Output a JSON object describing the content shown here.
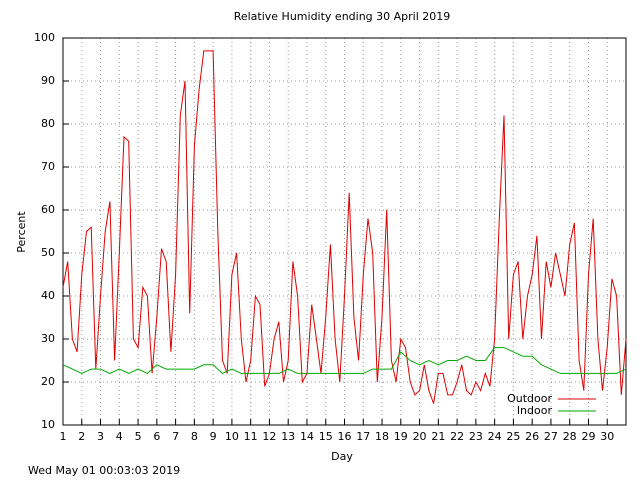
{
  "chart_data": {
    "type": "line",
    "title": "Relative Humidity ending 30 April 2019",
    "xlabel": "Day",
    "ylabel": "Percent",
    "footer": "Wed May 01 00:03:03 2019",
    "xlim": [
      1,
      31
    ],
    "xticks": [
      1,
      2,
      3,
      4,
      5,
      6,
      7,
      8,
      9,
      10,
      11,
      12,
      13,
      14,
      15,
      16,
      17,
      18,
      19,
      20,
      21,
      22,
      23,
      24,
      25,
      26,
      27,
      28,
      29,
      30
    ],
    "ylim": [
      10,
      100
    ],
    "yticks": [
      10,
      20,
      30,
      40,
      50,
      60,
      70,
      80,
      90,
      100
    ],
    "grid": true,
    "legend": "lower right",
    "series": [
      {
        "name": "Outdoor",
        "color": "#dd0000",
        "x": [
          1,
          1.25,
          1.5,
          1.75,
          2,
          2.25,
          2.5,
          2.75,
          3,
          3.25,
          3.5,
          3.75,
          4,
          4.25,
          4.5,
          4.75,
          5,
          5.25,
          5.5,
          5.75,
          6,
          6.25,
          6.5,
          6.75,
          7,
          7.25,
          7.5,
          7.75,
          8,
          8.25,
          8.5,
          8.75,
          9,
          9.25,
          9.5,
          9.75,
          10,
          10.25,
          10.5,
          10.75,
          11,
          11.25,
          11.5,
          11.75,
          12,
          12.25,
          12.5,
          12.75,
          13,
          13.25,
          13.5,
          13.75,
          14,
          14.25,
          14.5,
          14.75,
          15,
          15.25,
          15.5,
          15.75,
          16,
          16.25,
          16.5,
          16.75,
          17,
          17.25,
          17.5,
          17.75,
          18,
          18.25,
          18.5,
          18.75,
          19,
          19.25,
          19.5,
          19.75,
          20,
          20.25,
          20.5,
          20.75,
          21,
          21.25,
          21.5,
          21.75,
          22,
          22.25,
          22.5,
          22.75,
          23,
          23.25,
          23.5,
          23.75,
          24,
          24.25,
          24.5,
          24.75,
          25,
          25.25,
          25.5,
          25.75,
          26,
          26.25,
          26.5,
          26.75,
          27,
          27.25,
          27.5,
          27.75,
          28,
          28.25,
          28.5,
          28.75,
          29,
          29.25,
          29.5,
          29.75,
          30,
          30.25,
          30.5,
          30.75,
          31
        ],
        "values": [
          42,
          48,
          30,
          27,
          45,
          55,
          56,
          23,
          40,
          55,
          62,
          25,
          50,
          77,
          76,
          30,
          28,
          42,
          40,
          22,
          35,
          51,
          48,
          27,
          45,
          82,
          90,
          36,
          75,
          88,
          97,
          97,
          97,
          55,
          25,
          22,
          45,
          50,
          30,
          20,
          25,
          40,
          38,
          19,
          22,
          30,
          34,
          20,
          25,
          48,
          40,
          20,
          22,
          38,
          30,
          22,
          35,
          52,
          30,
          20,
          40,
          64,
          35,
          25,
          45,
          58,
          50,
          20,
          35,
          60,
          25,
          20,
          30,
          28,
          20,
          17,
          18,
          24,
          18,
          15,
          22,
          22,
          17,
          17,
          20,
          24,
          18,
          17,
          20,
          18,
          22,
          19,
          30,
          58,
          82,
          30,
          45,
          48,
          30,
          40,
          45,
          54,
          30,
          48,
          42,
          50,
          45,
          40,
          52,
          57,
          25,
          18,
          45,
          58,
          30,
          18,
          28,
          44,
          40,
          17,
          30
        ]
      },
      {
        "name": "Indoor",
        "color": "#00aa00",
        "x": [
          1,
          1.5,
          2,
          2.5,
          3,
          3.5,
          4,
          4.5,
          5,
          5.5,
          6,
          6.5,
          7,
          7.5,
          8,
          8.5,
          9,
          9.5,
          10,
          10.5,
          11,
          11.5,
          12,
          12.5,
          13,
          13.5,
          14,
          14.5,
          15,
          15.5,
          16,
          16.5,
          17,
          17.5,
          18,
          18.5,
          19,
          19.5,
          20,
          20.5,
          21,
          21.5,
          22,
          22.5,
          23,
          23.5,
          24,
          24.5,
          25,
          25.5,
          26,
          26.5,
          27,
          27.5,
          28,
          28.5,
          29,
          29.5,
          30,
          30.5,
          31
        ],
        "values": [
          24,
          23,
          22,
          23,
          23,
          22,
          23,
          22,
          23,
          22,
          24,
          23,
          23,
          23,
          23,
          24,
          24,
          22,
          23,
          22,
          22,
          22,
          22,
          22,
          23,
          22,
          22,
          22,
          22,
          22,
          22,
          22,
          22,
          23,
          23,
          23,
          27,
          25,
          24,
          25,
          24,
          25,
          25,
          26,
          25,
          25,
          28,
          28,
          27,
          26,
          26,
          24,
          23,
          22,
          22,
          22,
          22,
          22,
          22,
          22,
          23
        ]
      }
    ]
  }
}
